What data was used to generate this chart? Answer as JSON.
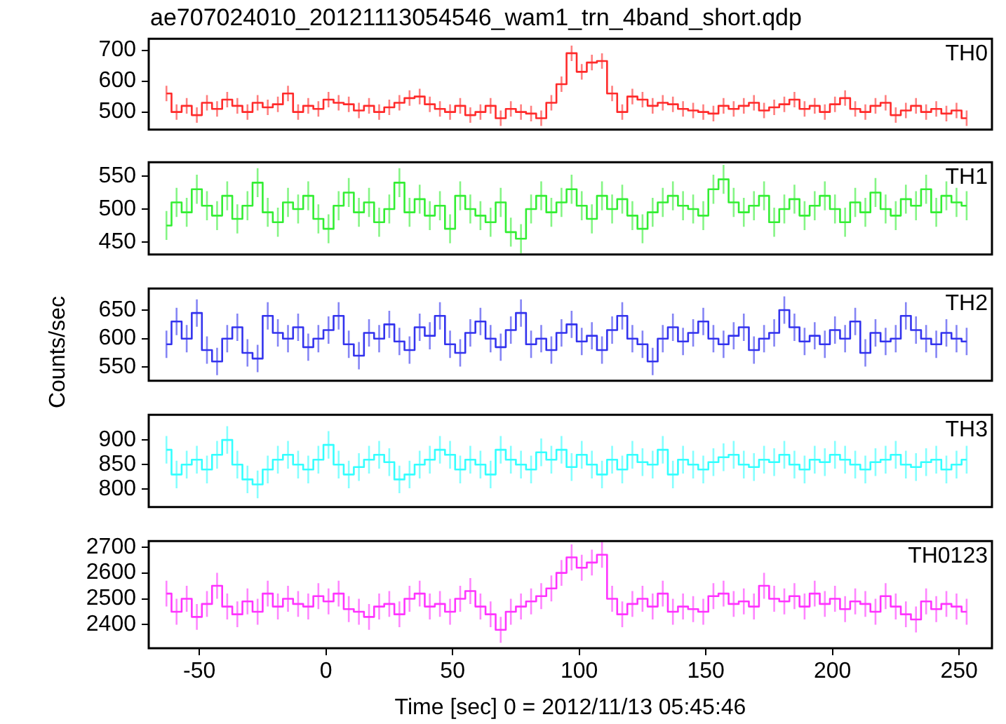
{
  "chart_data": [
    {
      "type": "step",
      "title": "ae707024010_20121113054546_wam1_trn_4band_short.qdp",
      "x": [
        -63,
        -59,
        -55,
        -51,
        -47,
        -43,
        -39,
        -35,
        -31,
        -27,
        -23,
        -19,
        -15,
        -11,
        -7,
        -3,
        1,
        5,
        9,
        13,
        17,
        21,
        25,
        29,
        33,
        37,
        41,
        45,
        49,
        53,
        57,
        61,
        65,
        69,
        73,
        77,
        81,
        85,
        89,
        93,
        97,
        101,
        105,
        109,
        113,
        117,
        121,
        125,
        129,
        133,
        137,
        141,
        145,
        149,
        153,
        157,
        161,
        165,
        169,
        173,
        177,
        181,
        185,
        189,
        193,
        197,
        201,
        205,
        209,
        213,
        217,
        221,
        225,
        229,
        233,
        237,
        241,
        245,
        249,
        253
      ],
      "series": [
        {
          "name": "TH0",
          "color": "#ff2a2a",
          "values": [
            560,
            500,
            520,
            490,
            530,
            510,
            540,
            520,
            500,
            530,
            515,
            525,
            560,
            500,
            520,
            510,
            540,
            530,
            525,
            505,
            520,
            500,
            515,
            530,
            545,
            550,
            525,
            510,
            500,
            520,
            490,
            500,
            520,
            480,
            510,
            500,
            495,
            480,
            530,
            590,
            690,
            630,
            660,
            665,
            560,
            500,
            550,
            540,
            520,
            530,
            525,
            510,
            505,
            500,
            495,
            520,
            510,
            520,
            530,
            505,
            515,
            525,
            540,
            510,
            520,
            500,
            525,
            545,
            510,
            500,
            520,
            530,
            490,
            505,
            520,
            500,
            510,
            495,
            505,
            480
          ],
          "errors": [
            25,
            25,
            25,
            25,
            25,
            25,
            25,
            25,
            25,
            25,
            25,
            25,
            25,
            25,
            25,
            25,
            25,
            25,
            25,
            25,
            25,
            25,
            25,
            25,
            25,
            25,
            25,
            25,
            25,
            25,
            25,
            25,
            25,
            25,
            25,
            25,
            25,
            25,
            25,
            25,
            25,
            25,
            25,
            25,
            25,
            25,
            25,
            25,
            25,
            25,
            25,
            25,
            25,
            25,
            25,
            25,
            25,
            25,
            25,
            25,
            25,
            25,
            25,
            25,
            25,
            25,
            25,
            25,
            25,
            25,
            25,
            25,
            25,
            25,
            25,
            25,
            25,
            25,
            25,
            25
          ]
        }
      ],
      "xlim": [
        -70,
        263
      ],
      "xticks": [
        -50,
        0,
        50,
        100,
        150,
        200,
        250
      ],
      "ylim": [
        443,
        737
      ],
      "yticks": [
        500,
        600,
        700
      ],
      "marker": "none",
      "tick_labels": "y"
    },
    {
      "type": "step",
      "x": [
        -63,
        -59,
        -55,
        -51,
        -47,
        -43,
        -39,
        -35,
        -31,
        -27,
        -23,
        -19,
        -15,
        -11,
        -7,
        -3,
        1,
        5,
        9,
        13,
        17,
        21,
        25,
        29,
        33,
        37,
        41,
        45,
        49,
        53,
        57,
        61,
        65,
        69,
        73,
        77,
        81,
        85,
        89,
        93,
        97,
        101,
        105,
        109,
        113,
        117,
        121,
        125,
        129,
        133,
        137,
        141,
        145,
        149,
        153,
        157,
        161,
        165,
        169,
        173,
        177,
        181,
        185,
        189,
        193,
        197,
        201,
        205,
        209,
        213,
        217,
        221,
        225,
        229,
        233,
        237,
        241,
        245,
        249,
        253
      ],
      "series": [
        {
          "name": "TH1",
          "color": "#33ee33",
          "values": [
            475,
            510,
            495,
            530,
            505,
            490,
            520,
            485,
            505,
            540,
            495,
            480,
            510,
            500,
            520,
            485,
            470,
            505,
            525,
            495,
            510,
            480,
            500,
            540,
            495,
            515,
            490,
            505,
            470,
            520,
            500,
            490,
            480,
            510,
            465,
            455,
            500,
            520,
            495,
            510,
            530,
            505,
            485,
            520,
            500,
            515,
            490,
            470,
            495,
            510,
            520,
            505,
            500,
            490,
            530,
            545,
            510,
            495,
            505,
            520,
            480,
            500,
            515,
            490,
            505,
            520,
            500,
            480,
            510,
            495,
            525,
            500,
            490,
            515,
            505,
            530,
            495,
            520,
            510,
            505
          ],
          "errors": [
            22,
            22,
            22,
            22,
            22,
            22,
            22,
            22,
            22,
            22,
            22,
            22,
            22,
            22,
            22,
            22,
            22,
            22,
            22,
            22,
            22,
            22,
            22,
            22,
            22,
            22,
            22,
            22,
            22,
            22,
            22,
            22,
            22,
            22,
            22,
            22,
            22,
            22,
            22,
            22,
            22,
            22,
            22,
            22,
            22,
            22,
            22,
            22,
            22,
            22,
            22,
            22,
            22,
            22,
            22,
            22,
            22,
            22,
            22,
            22,
            22,
            22,
            22,
            22,
            22,
            22,
            22,
            22,
            22,
            22,
            22,
            22,
            22,
            22,
            22,
            22,
            22,
            22,
            22,
            22
          ]
        }
      ],
      "xlim": [
        -70,
        263
      ],
      "xticks": [
        -50,
        0,
        50,
        100,
        150,
        200,
        250
      ],
      "ylim": [
        431,
        571
      ],
      "yticks": [
        450,
        500,
        550
      ],
      "marker": "none",
      "tick_labels": "y"
    },
    {
      "type": "step",
      "ylabel": "Counts/sec",
      "x": [
        -63,
        -59,
        -55,
        -51,
        -47,
        -43,
        -39,
        -35,
        -31,
        -27,
        -23,
        -19,
        -15,
        -11,
        -7,
        -3,
        1,
        5,
        9,
        13,
        17,
        21,
        25,
        29,
        33,
        37,
        41,
        45,
        49,
        53,
        57,
        61,
        65,
        69,
        73,
        77,
        81,
        85,
        89,
        93,
        97,
        101,
        105,
        109,
        113,
        117,
        121,
        125,
        129,
        133,
        137,
        141,
        145,
        149,
        153,
        157,
        161,
        165,
        169,
        173,
        177,
        181,
        185,
        189,
        193,
        197,
        201,
        205,
        209,
        213,
        217,
        221,
        225,
        229,
        233,
        237,
        241,
        245,
        249,
        253
      ],
      "series": [
        {
          "name": "TH2",
          "color": "#3333ee",
          "values": [
            590,
            630,
            600,
            645,
            580,
            560,
            600,
            620,
            575,
            565,
            640,
            610,
            600,
            620,
            585,
            600,
            615,
            640,
            590,
            570,
            610,
            600,
            625,
            595,
            580,
            620,
            605,
            640,
            590,
            575,
            610,
            630,
            600,
            585,
            615,
            645,
            590,
            600,
            580,
            610,
            625,
            595,
            605,
            580,
            615,
            640,
            600,
            590,
            560,
            600,
            620,
            595,
            610,
            630,
            600,
            590,
            605,
            620,
            580,
            600,
            610,
            650,
            620,
            595,
            605,
            590,
            615,
            600,
            630,
            575,
            610,
            595,
            600,
            640,
            615,
            600,
            590,
            610,
            600,
            595
          ],
          "errors": [
            24,
            24,
            24,
            24,
            24,
            24,
            24,
            24,
            24,
            24,
            24,
            24,
            24,
            24,
            24,
            24,
            24,
            24,
            24,
            24,
            24,
            24,
            24,
            24,
            24,
            24,
            24,
            24,
            24,
            24,
            24,
            24,
            24,
            24,
            24,
            24,
            24,
            24,
            24,
            24,
            24,
            24,
            24,
            24,
            24,
            24,
            24,
            24,
            24,
            24,
            24,
            24,
            24,
            24,
            24,
            24,
            24,
            24,
            24,
            24,
            24,
            24,
            24,
            24,
            24,
            24,
            24,
            24,
            24,
            24,
            24,
            24,
            24,
            24,
            24,
            24,
            24,
            24,
            24,
            24
          ]
        }
      ],
      "xlim": [
        -70,
        263
      ],
      "xticks": [
        -50,
        0,
        50,
        100,
        150,
        200,
        250
      ],
      "ylim": [
        526,
        688
      ],
      "yticks": [
        550,
        600,
        650
      ],
      "marker": "none",
      "tick_labels": "y"
    },
    {
      "type": "step",
      "x": [
        -63,
        -59,
        -55,
        -51,
        -47,
        -43,
        -39,
        -35,
        -31,
        -27,
        -23,
        -19,
        -15,
        -11,
        -7,
        -3,
        1,
        5,
        9,
        13,
        17,
        21,
        25,
        29,
        33,
        37,
        41,
        45,
        49,
        53,
        57,
        61,
        65,
        69,
        73,
        77,
        81,
        85,
        89,
        93,
        97,
        101,
        105,
        109,
        113,
        117,
        121,
        125,
        129,
        133,
        137,
        141,
        145,
        149,
        153,
        157,
        161,
        165,
        169,
        173,
        177,
        181,
        185,
        189,
        193,
        197,
        201,
        205,
        209,
        213,
        217,
        221,
        225,
        229,
        233,
        237,
        241,
        245,
        249,
        253
      ],
      "series": [
        {
          "name": "TH3",
          "color": "#33ffff",
          "values": [
            880,
            830,
            850,
            860,
            840,
            870,
            900,
            850,
            820,
            810,
            840,
            860,
            870,
            850,
            840,
            860,
            890,
            850,
            830,
            845,
            860,
            870,
            855,
            820,
            830,
            850,
            860,
            880,
            870,
            840,
            860,
            850,
            830,
            880,
            860,
            850,
            840,
            875,
            860,
            880,
            845,
            870,
            850,
            830,
            860,
            840,
            870,
            855,
            850,
            880,
            830,
            860,
            850,
            840,
            855,
            865,
            870,
            850,
            845,
            860,
            855,
            870,
            850,
            840,
            860,
            855,
            870,
            860,
            850,
            840,
            855,
            860,
            870,
            850,
            845,
            855,
            860,
            840,
            850,
            860
          ],
          "errors": [
            28,
            28,
            28,
            28,
            28,
            28,
            28,
            28,
            28,
            28,
            28,
            28,
            28,
            28,
            28,
            28,
            28,
            28,
            28,
            28,
            28,
            28,
            28,
            28,
            28,
            28,
            28,
            28,
            28,
            28,
            28,
            28,
            28,
            28,
            28,
            28,
            28,
            28,
            28,
            28,
            28,
            28,
            28,
            28,
            28,
            28,
            28,
            28,
            28,
            28,
            28,
            28,
            28,
            28,
            28,
            28,
            28,
            28,
            28,
            28,
            28,
            28,
            28,
            28,
            28,
            28,
            28,
            28,
            28,
            28,
            28,
            28,
            28,
            28,
            28,
            28,
            28,
            28,
            28,
            28
          ]
        }
      ],
      "xlim": [
        -70,
        263
      ],
      "xticks": [
        -50,
        0,
        50,
        100,
        150,
        200,
        250
      ],
      "ylim": [
        764,
        951
      ],
      "yticks": [
        800,
        850,
        900
      ],
      "marker": "none",
      "tick_labels": "y"
    },
    {
      "type": "step",
      "xlabel": "Time [sec] 0 = 2012/11/13 05:45:46",
      "x": [
        -63,
        -59,
        -55,
        -51,
        -47,
        -43,
        -39,
        -35,
        -31,
        -27,
        -23,
        -19,
        -15,
        -11,
        -7,
        -3,
        1,
        5,
        9,
        13,
        17,
        21,
        25,
        29,
        33,
        37,
        41,
        45,
        49,
        53,
        57,
        61,
        65,
        69,
        73,
        77,
        81,
        85,
        89,
        93,
        97,
        101,
        105,
        109,
        113,
        117,
        121,
        125,
        129,
        133,
        137,
        141,
        145,
        149,
        153,
        157,
        161,
        165,
        169,
        173,
        177,
        181,
        185,
        189,
        193,
        197,
        201,
        205,
        209,
        213,
        217,
        221,
        225,
        229,
        233,
        237,
        241,
        245,
        249,
        253
      ],
      "series": [
        {
          "name": "TH0123",
          "color": "#ff33ff",
          "values": [
            2520,
            2450,
            2500,
            2430,
            2480,
            2550,
            2470,
            2440,
            2490,
            2450,
            2520,
            2470,
            2500,
            2480,
            2470,
            2510,
            2490,
            2520,
            2460,
            2450,
            2430,
            2470,
            2480,
            2440,
            2500,
            2520,
            2470,
            2480,
            2450,
            2500,
            2530,
            2470,
            2440,
            2380,
            2450,
            2470,
            2490,
            2510,
            2540,
            2600,
            2660,
            2620,
            2640,
            2670,
            2500,
            2440,
            2480,
            2500,
            2470,
            2520,
            2450,
            2470,
            2460,
            2450,
            2510,
            2520,
            2480,
            2490,
            2470,
            2550,
            2500,
            2490,
            2510,
            2470,
            2520,
            2480,
            2500,
            2460,
            2490,
            2480,
            2450,
            2510,
            2470,
            2440,
            2420,
            2490,
            2460,
            2480,
            2470,
            2450
          ],
          "errors": [
            50,
            50,
            50,
            50,
            50,
            50,
            50,
            50,
            50,
            50,
            50,
            50,
            50,
            50,
            50,
            50,
            50,
            50,
            50,
            50,
            50,
            50,
            50,
            50,
            50,
            50,
            50,
            50,
            50,
            50,
            50,
            50,
            50,
            50,
            50,
            50,
            50,
            50,
            50,
            50,
            50,
            50,
            50,
            50,
            50,
            50,
            50,
            50,
            50,
            50,
            50,
            50,
            50,
            50,
            50,
            50,
            50,
            50,
            50,
            50,
            50,
            50,
            50,
            50,
            50,
            50,
            50,
            50,
            50,
            50,
            50,
            50,
            50,
            50,
            50,
            50,
            50,
            50,
            50,
            50
          ]
        }
      ],
      "xlim": [
        -70,
        263
      ],
      "xticks": [
        -50,
        0,
        50,
        100,
        150,
        200,
        250
      ],
      "ylim": [
        2309,
        2723
      ],
      "yticks": [
        2400,
        2500,
        2600,
        2700
      ],
      "marker": "none"
    }
  ]
}
